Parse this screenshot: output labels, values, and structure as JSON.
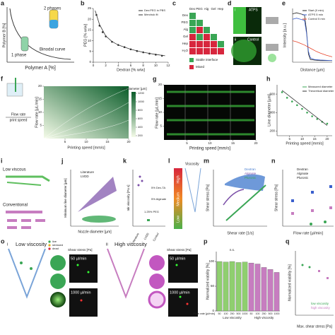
{
  "a": {
    "letter": "a",
    "y_label": "Polymer B [%]",
    "x_label": "Polymer A [%]",
    "two_phases": "2 phases",
    "one_phase": "1 phase",
    "binodal": "Binodal curve"
  },
  "b": {
    "letter": "b",
    "x_label": "Dextran [% w/w]",
    "y_label": "PEG [% w/w]",
    "xlim": [
      0,
      12
    ],
    "xticks": [
      0,
      2,
      4,
      6,
      8,
      10,
      12
    ],
    "ylim": [
      0,
      25
    ],
    "yticks": [
      0,
      5,
      10,
      15,
      20,
      25
    ],
    "series": [
      {
        "name": "Dex:PEG in PBS",
        "type": "scatter",
        "color": "#333333",
        "x": [
          0.5,
          1,
          1.5,
          2,
          3,
          4,
          5,
          6,
          7,
          8,
          9,
          10,
          11
        ],
        "values": [
          22,
          17,
          14,
          12,
          9.5,
          8,
          7,
          6,
          5.2,
          4.6,
          4,
          3.5,
          3
        ]
      },
      {
        "name": "Merchuk fit",
        "type": "line",
        "color": "#333333",
        "x": [
          0.3,
          1,
          2,
          3,
          4,
          6,
          8,
          10,
          11.5
        ],
        "values": [
          24,
          17.5,
          12.2,
          9.6,
          8,
          6,
          4.6,
          3.6,
          3
        ]
      }
    ]
  },
  "c": {
    "letter": "c",
    "columns": [
      "Dex",
      "PEG",
      "Alg",
      "Gel",
      "Hep"
    ],
    "rows": [
      "Dex",
      "PEG",
      "Alg",
      "Gel",
      "Hep",
      "H₂O"
    ],
    "legend": [
      "Stable interface",
      "Mixed"
    ]
  },
  "d": {
    "letter": "d",
    "labels": [
      "i",
      "ATPS",
      "ii",
      "Control"
    ]
  },
  "e": {
    "letter": "e",
    "x_label": "Distance [µm]",
    "y_label": "Intensity [a.u.]",
    "xlim": [
      0,
      100
    ],
    "ylim": [
      0,
      1
    ],
    "series": [
      {
        "name": "Start (0 min)",
        "type": "line",
        "color": "#222222",
        "x": [
          0,
          10,
          20,
          30,
          35,
          40,
          45,
          55,
          70,
          100
        ],
        "values": [
          0.9,
          0.92,
          0.9,
          0.88,
          0.6,
          0.15,
          0.05,
          0.04,
          0.03,
          0.03
        ]
      },
      {
        "name": "ATPS 5 min",
        "type": "line",
        "color": "#3a5fcd",
        "x": [
          0,
          10,
          20,
          30,
          35,
          40,
          45,
          55,
          70,
          100
        ],
        "values": [
          0.8,
          0.82,
          0.8,
          0.78,
          0.55,
          0.2,
          0.08,
          0.05,
          0.04,
          0.03
        ]
      },
      {
        "name": "Control 5 min",
        "type": "line",
        "color": "#e8442a",
        "x": [
          0,
          10,
          20,
          30,
          40,
          50,
          60,
          70,
          85,
          100
        ],
        "values": [
          0.4,
          0.38,
          0.35,
          0.32,
          0.28,
          0.24,
          0.2,
          0.17,
          0.13,
          0.1
        ]
      }
    ]
  },
  "f": {
    "letter": "f",
    "y_label": "Flow rate [µL/min]",
    "x_label": "Printing speed [mm/s]",
    "colorbar_title": "Line diameter [µm]",
    "colorbar_ticks": [
      200,
      400,
      600,
      800,
      1000,
      1200
    ],
    "xticks": [
      5,
      10,
      15,
      20
    ],
    "yticks": [
      5,
      10,
      15,
      20
    ],
    "formula": [
      "Flow rate",
      "print speed"
    ]
  },
  "g": {
    "letter": "g",
    "y_label": "Flow rate [µL/min]",
    "x_label": "Printing speed [mm/s]",
    "xticks": [
      5,
      10,
      15,
      20
    ],
    "yticks": [
      5,
      10,
      15,
      20
    ]
  },
  "h": {
    "letter": "h",
    "x_label": "Printing speed [mm/s]",
    "y_label": "Line diameter [µm]",
    "xlim": [
      0,
      22
    ],
    "xticks": [
      5,
      10,
      15,
      20
    ],
    "ylim": [
      150,
      700
    ],
    "yticks": [
      200,
      400,
      600
    ],
    "series": [
      {
        "name": "Measured diameter",
        "type": "scatter",
        "color": "#3aa655",
        "x": [
          2,
          4,
          6,
          8,
          10,
          12,
          14,
          16,
          18,
          20
        ],
        "values": [
          620,
          560,
          520,
          480,
          440,
          400,
          360,
          330,
          300,
          280
        ]
      },
      {
        "name": "Theoretical diameter",
        "type": "line",
        "color": "#333333",
        "x": [
          2,
          20
        ],
        "values": [
          640,
          260
        ]
      }
    ]
  },
  "i": {
    "letter": "i",
    "low": "Low viscous",
    "conventional": "Conventional"
  },
  "j": {
    "letter": "j",
    "y_label": "Minimum line diameter [µm]",
    "x_label": "Nozzle diameter [µm]",
    "legend": [
      "Literature",
      "LVDD"
    ]
  },
  "k": {
    "letter": "k",
    "y_label": "Ink viscosity [Pa s]",
    "labels": [
      "Literature",
      "LVDD",
      "Control",
      "5% Alginate",
      "1.25% PEG",
      "5% Dex-TA"
    ]
  },
  "l": {
    "letter": "l",
    "title": "Viscosity",
    "levels": [
      "High",
      "Medium",
      "Low"
    ]
  },
  "m": {
    "letter": "m",
    "y_label": "Shear stress [Pa]",
    "x_label": "Shear rate [1/s]",
    "legend": [
      "Dextran",
      "Alginate",
      "Pluronic"
    ]
  },
  "n": {
    "letter": "n",
    "y_label": "Shear stress [Pa]",
    "x_label": "Flow rate [µl/min]",
    "legend": [
      "Dextran",
      "Alginate",
      "Pluronic"
    ]
  },
  "o": {
    "letter": "o",
    "legend": [
      "live",
      "stressed",
      "dead"
    ],
    "i": {
      "num": "i",
      "title": "Low viscosity",
      "shear_title": "Shear stress [Pa]",
      "rates": [
        "50 µl/min",
        "1000 µl/min"
      ]
    },
    "ii": {
      "num": "ii",
      "title": "High viscosity",
      "shear_title": "Shear stress [Pa]",
      "rates": [
        "50 µl/min",
        "1000 µl/min"
      ]
    }
  },
  "p": {
    "letter": "p",
    "y_label": "Normalized viability [%]",
    "x_label": "Flow rate [µl/min]",
    "ns": "n.s.",
    "ylim": [
      0,
      120
    ],
    "yticks": [
      0,
      50,
      100
    ],
    "categories": [
      "50",
      "100",
      "250",
      "500",
      "1000"
    ],
    "series": [
      {
        "name": "Low viscosity",
        "color": "#8fcf6f",
        "values": [
          100,
          99,
          100,
          98,
          99
        ]
      },
      {
        "name": "High viscosity",
        "color": "#c77dc0",
        "values": [
          97,
          95,
          88,
          84,
          78
        ]
      }
    ]
  },
  "q": {
    "letter": "q",
    "y_label": "Normalized viability [%]",
    "x_label": "Max. shear stress [Pa]",
    "legend": [
      "low viscosity",
      "high viscosity"
    ]
  }
}
